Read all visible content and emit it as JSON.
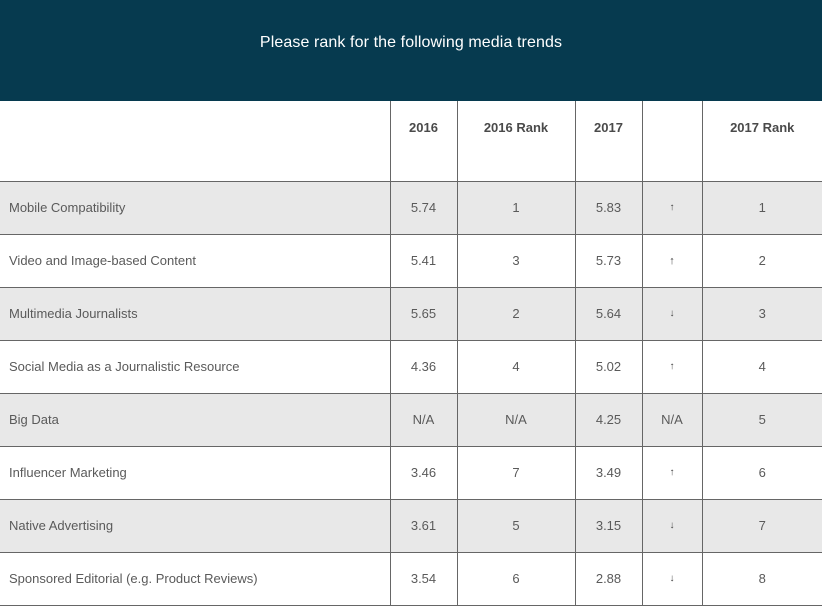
{
  "header": {
    "title": "Please rank for the following media trends"
  },
  "table": {
    "columns": [
      "",
      "2016",
      "2016 Rank",
      "2017",
      "",
      "2017 Rank"
    ],
    "rows": [
      {
        "name": "Mobile Compatibility",
        "v2016": "5.74",
        "r2016": "1",
        "v2017": "5.83",
        "trend": "↑",
        "r2017": "1"
      },
      {
        "name": "Video and Image-based Content",
        "v2016": "5.41",
        "r2016": "3",
        "v2017": "5.73",
        "trend": "↑",
        "r2017": "2"
      },
      {
        "name": "Multimedia Journalists",
        "v2016": "5.65",
        "r2016": "2",
        "v2017": "5.64",
        "trend": "↓",
        "r2017": "3"
      },
      {
        "name": "Social Media as a Journalistic Resource",
        "v2016": "4.36",
        "r2016": "4",
        "v2017": "5.02",
        "trend": "↑",
        "r2017": "4"
      },
      {
        "name": "Big Data",
        "v2016": "N/A",
        "r2016": "N/A",
        "v2017": "4.25",
        "trend": "N/A",
        "r2017": "5"
      },
      {
        "name": "Influencer Marketing",
        "v2016": "3.46",
        "r2016": "7",
        "v2017": "3.49",
        "trend": "↑",
        "r2017": "6"
      },
      {
        "name": "Native Advertising",
        "v2016": "3.61",
        "r2016": "5",
        "v2017": "3.15",
        "trend": "↓",
        "r2017": "7"
      },
      {
        "name": "Sponsored Editorial (e.g. Product Reviews)",
        "v2016": "3.54",
        "r2016": "6",
        "v2017": "2.88",
        "trend": "↓",
        "r2017": "8"
      }
    ]
  },
  "colors": {
    "header_bg": "#063a4f",
    "row_shade": "#e8e8e8",
    "border": "#666666"
  }
}
